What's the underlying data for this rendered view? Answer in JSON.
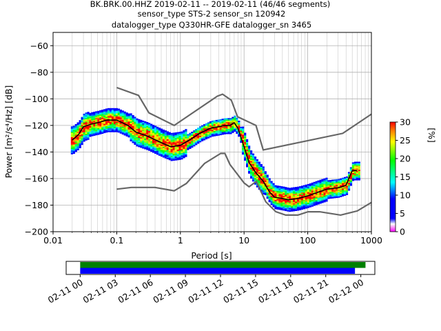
{
  "header": {
    "line1": "BK.BRK.00.HHZ   2019-02-11 -- 2019-02-11  (46/46 segments)",
    "line2": "sensor_type STS-2 sensor_sn 120942",
    "line3": "datalogger_type Q330HR-GFE datalogger_sn 3465"
  },
  "chart_data": [
    {
      "type": "heatmap",
      "title": "",
      "xlabel": "Period [s]",
      "ylabel": "Power [m²/s⁴/Hz] [dB]",
      "xscale": "log",
      "xlim": [
        0.01,
        1000
      ],
      "ylim": [
        -200,
        -50
      ],
      "x_ticks": [
        "0.01",
        "0.1",
        "1",
        "10",
        "100",
        "1000"
      ],
      "y_ticks": [
        "−200",
        "−180",
        "−160",
        "−140",
        "−120",
        "−100",
        "−80",
        "−60"
      ],
      "x_tick_values": [
        0.01,
        0.1,
        1,
        10,
        100,
        1000
      ],
      "y_tick_values": [
        -200,
        -180,
        -160,
        -140,
        -120,
        -100,
        -80,
        -60
      ],
      "grid": true,
      "colorbar": {
        "label": "[%]",
        "range": [
          0,
          30
        ],
        "ticks": [
          "0",
          "5",
          "10",
          "15",
          "20",
          "25",
          "30"
        ],
        "tick_values": [
          0,
          5,
          10,
          15,
          20,
          25,
          30
        ]
      },
      "series": [
        {
          "role": "mean",
          "color": "#000000",
          "x": [
            0.02,
            0.025,
            0.03,
            0.04,
            0.05,
            0.07,
            0.1,
            0.15,
            0.2,
            0.3,
            0.5,
            0.7,
            1,
            1.5,
            2,
            3,
            4,
            5,
            6,
            7,
            8,
            10,
            12,
            15,
            20,
            25,
            30,
            40,
            50,
            70,
            100,
            150,
            200,
            300,
            400,
            500,
            600
          ],
          "y": [
            -131,
            -127,
            -121,
            -119,
            -118,
            -116,
            -116,
            -120,
            -125,
            -128,
            -133,
            -136,
            -135,
            -130,
            -126,
            -122,
            -121,
            -120,
            -120,
            -118,
            -122,
            -136,
            -148,
            -155,
            -162,
            -170,
            -174,
            -175,
            -176,
            -175,
            -173,
            -170,
            -168,
            -167,
            -165,
            -154,
            -154
          ]
        },
        {
          "role": "noise-model-high",
          "color": "#666666",
          "x": [
            0.1,
            0.22,
            0.32,
            0.8,
            3.8,
            4.6,
            6.3,
            7.9,
            15.4,
            20,
            354.8,
            1000
          ],
          "y": [
            -91.5,
            -97.4,
            -110.5,
            -120,
            -98,
            -96.5,
            -101,
            -113.5,
            -120,
            -138.5,
            -126,
            -111.5
          ]
        },
        {
          "role": "noise-model-low",
          "color": "#666666",
          "x": [
            0.1,
            0.17,
            0.4,
            0.8,
            1.24,
            2.4,
            4.3,
            5,
            6,
            10,
            12,
            15.6,
            21.9,
            31.6,
            45,
            70,
            101,
            154,
            328,
            600,
            1000
          ],
          "y": [
            -168,
            -166.7,
            -166.7,
            -169.2,
            -163.7,
            -148.6,
            -141.1,
            -141.1,
            -149.4,
            -163.3,
            -166.2,
            -162.1,
            -177.5,
            -185,
            -187.5,
            -187.5,
            -185,
            -185,
            -187.5,
            -184.4,
            -178
          ]
        }
      ]
    },
    {
      "type": "timeline",
      "x_ticks": [
        "02-11 00",
        "02-11 03",
        "02-11 06",
        "02-11 09",
        "02-11 12",
        "02-11 15",
        "02-11 18",
        "02-11 21",
        "02-12 00"
      ],
      "x_tick_hours": [
        0,
        3,
        6,
        9,
        12,
        15,
        18,
        21,
        24
      ],
      "xlim_hours": [
        -1.2,
        25.2
      ],
      "bars": [
        {
          "color": "#008000",
          "start_hour": 0,
          "end_hour": 24.4
        },
        {
          "color": "#0000ff",
          "start_hour": 0,
          "end_hour": 23.5
        }
      ]
    }
  ]
}
